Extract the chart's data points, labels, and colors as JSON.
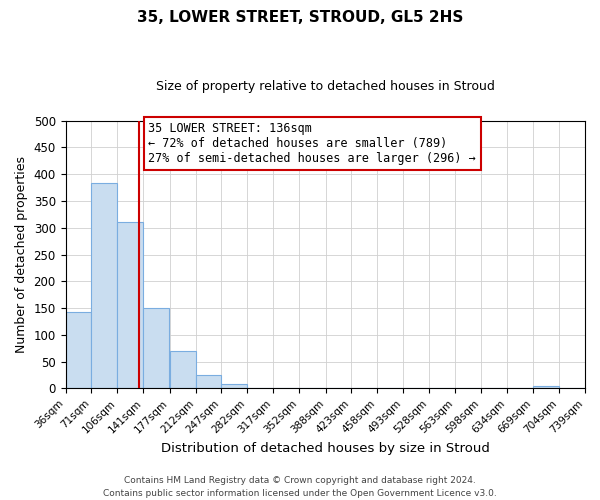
{
  "title": "35, LOWER STREET, STROUD, GL5 2HS",
  "subtitle": "Size of property relative to detached houses in Stroud",
  "xlabel": "Distribution of detached houses by size in Stroud",
  "ylabel": "Number of detached properties",
  "bin_edges": [
    36,
    71,
    106,
    141,
    177,
    212,
    247,
    282,
    317,
    352,
    388,
    423,
    458,
    493,
    528,
    563,
    598,
    634,
    669,
    704,
    739
  ],
  "bin_labels": [
    "36sqm",
    "71sqm",
    "106sqm",
    "141sqm",
    "177sqm",
    "212sqm",
    "247sqm",
    "282sqm",
    "317sqm",
    "352sqm",
    "388sqm",
    "423sqm",
    "458sqm",
    "493sqm",
    "528sqm",
    "563sqm",
    "598sqm",
    "634sqm",
    "669sqm",
    "704sqm",
    "739sqm"
  ],
  "bar_heights": [
    143,
    384,
    310,
    150,
    70,
    25,
    8,
    0,
    0,
    0,
    0,
    0,
    0,
    0,
    0,
    0,
    0,
    0,
    5,
    0
  ],
  "bar_color": "#c9ddf0",
  "bar_edgecolor": "#7aade0",
  "property_size": 136,
  "vline_color": "#cc0000",
  "ylim": [
    0,
    500
  ],
  "yticks": [
    0,
    50,
    100,
    150,
    200,
    250,
    300,
    350,
    400,
    450,
    500
  ],
  "annotation_text": "35 LOWER STREET: 136sqm\n← 72% of detached houses are smaller (789)\n27% of semi-detached houses are larger (296) →",
  "annotation_box_color": "#ffffff",
  "annotation_box_edgecolor": "#cc0000",
  "footnote1": "Contains HM Land Registry data © Crown copyright and database right 2024.",
  "footnote2": "Contains public sector information licensed under the Open Government Licence v3.0.",
  "background_color": "#ffffff",
  "grid_color": "#d0d0d0"
}
